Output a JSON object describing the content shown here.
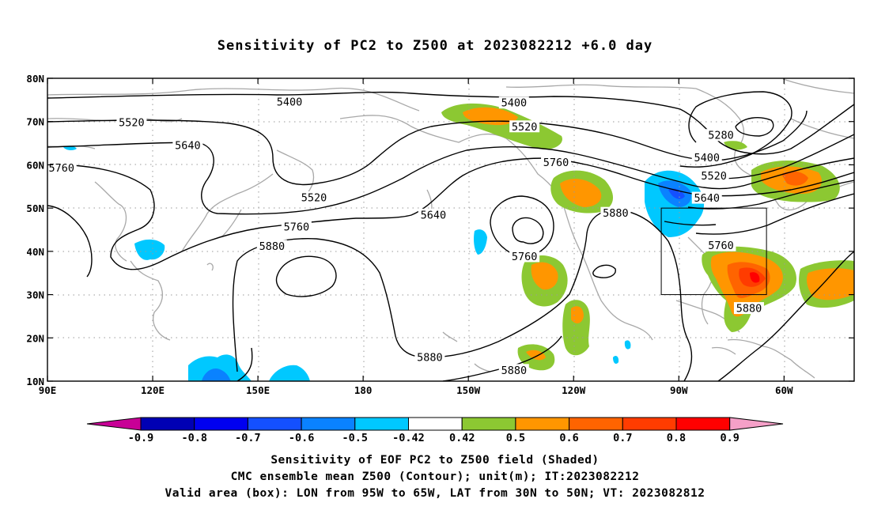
{
  "title": "Sensitivity of PC2 to Z500 at 2023082212 +6.0 day",
  "map": {
    "lon_ticks": [
      {
        "lon": 90,
        "label": "90E"
      },
      {
        "lon": 120,
        "label": "120E"
      },
      {
        "lon": 150,
        "label": "150E"
      },
      {
        "lon": 180,
        "label": "180"
      },
      {
        "lon": 210,
        "label": "150W"
      },
      {
        "lon": 240,
        "label": "120W"
      },
      {
        "lon": 270,
        "label": "90W"
      },
      {
        "lon": 300,
        "label": "60W"
      }
    ],
    "lat_ticks": [
      {
        "lat": 80,
        "label": "80N"
      },
      {
        "lat": 70,
        "label": "70N"
      },
      {
        "lat": 60,
        "label": "60N"
      },
      {
        "lat": 50,
        "label": "50N"
      },
      {
        "lat": 40,
        "label": "40N"
      },
      {
        "lat": 30,
        "label": "30N"
      },
      {
        "lat": 20,
        "label": "20N"
      },
      {
        "lat": 10,
        "label": "10N"
      }
    ],
    "valid_box": {
      "lon_min": 265,
      "lon_max": 295,
      "lat_min": 30,
      "lat_max": 50
    },
    "contour_labels": [
      {
        "text": "5400",
        "lon": 159,
        "lat": 74.5
      },
      {
        "text": "5400",
        "lon": 223,
        "lat": 74.3
      },
      {
        "text": "5520",
        "lon": 114,
        "lat": 69.8
      },
      {
        "text": "5520",
        "lon": 226,
        "lat": 68.8
      },
      {
        "text": "5640",
        "lon": 130,
        "lat": 64.5
      },
      {
        "text": "5760",
        "lon": 94,
        "lat": 59.3
      },
      {
        "text": "5520",
        "lon": 166,
        "lat": 52.4
      },
      {
        "text": "5760",
        "lon": 235,
        "lat": 60.5
      },
      {
        "text": "5640",
        "lon": 200,
        "lat": 48.4
      },
      {
        "text": "5760",
        "lon": 161,
        "lat": 45.6
      },
      {
        "text": "5880",
        "lon": 154,
        "lat": 41.2
      },
      {
        "text": "5880",
        "lon": 252,
        "lat": 48.8
      },
      {
        "text": "5760",
        "lon": 226,
        "lat": 38.8
      },
      {
        "text": "5280",
        "lon": 282,
        "lat": 66.8
      },
      {
        "text": "5400",
        "lon": 278,
        "lat": 61.6
      },
      {
        "text": "5520",
        "lon": 280,
        "lat": 57.4
      },
      {
        "text": "5640",
        "lon": 278,
        "lat": 52.3
      },
      {
        "text": "5760",
        "lon": 282,
        "lat": 41.3
      },
      {
        "text": "5880",
        "lon": 290,
        "lat": 26.8
      },
      {
        "text": "5880",
        "lon": 199,
        "lat": 15.5
      },
      {
        "text": "5880",
        "lon": 223,
        "lat": 12.5
      }
    ]
  },
  "colorbar": {
    "labels": [
      "-0.9",
      "-0.8",
      "-0.7",
      "-0.6",
      "-0.5",
      "-0.42",
      "0.42",
      "0.5",
      "0.6",
      "0.7",
      "0.8",
      "0.9"
    ],
    "colors": [
      "#0000b4",
      "#0000f0",
      "#1450ff",
      "#0a82ff",
      "#00c8ff",
      "#ffffff",
      "#8cc832",
      "#ff9600",
      "#ff6400",
      "#ff3c00",
      "#ff0000"
    ],
    "low_cap_color": "#c80096",
    "high_cap_color": "#f5a0c8"
  },
  "footer": {
    "line1": "Sensitivity of EOF PC2 to Z500 field (Shaded)",
    "line2": "CMC ensemble mean Z500 (Contour); unit(m); IT:2023082212",
    "line3": "Valid area (box): LON from 95W to 65W, LAT from 30N to 50N; VT: 2023082812"
  }
}
